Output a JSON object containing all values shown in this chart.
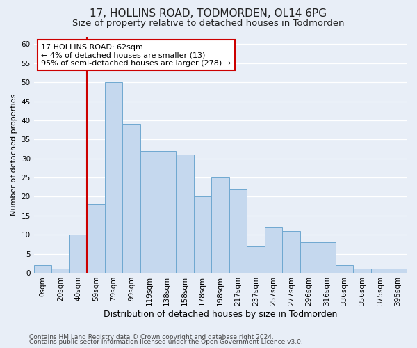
{
  "title1": "17, HOLLINS ROAD, TODMORDEN, OL14 6PG",
  "title2": "Size of property relative to detached houses in Todmorden",
  "xlabel": "Distribution of detached houses by size in Todmorden",
  "ylabel": "Number of detached properties",
  "categories": [
    "0sqm",
    "20sqm",
    "40sqm",
    "59sqm",
    "79sqm",
    "99sqm",
    "119sqm",
    "138sqm",
    "158sqm",
    "178sqm",
    "198sqm",
    "217sqm",
    "237sqm",
    "257sqm",
    "277sqm",
    "296sqm",
    "316sqm",
    "336sqm",
    "356sqm",
    "375sqm",
    "395sqm"
  ],
  "values": [
    2,
    1,
    10,
    18,
    50,
    39,
    32,
    32,
    31,
    20,
    25,
    22,
    7,
    12,
    11,
    8,
    8,
    2,
    1,
    1,
    1
  ],
  "bar_color": "#C5D8EE",
  "bar_edge_color": "#6FA8D0",
  "vline_color": "#CC0000",
  "annotation_box_text": "17 HOLLINS ROAD: 62sqm\n← 4% of detached houses are smaller (13)\n95% of semi-detached houses are larger (278) →",
  "annotation_box_color": "#CC0000",
  "annotation_box_fill": "#FFFFFF",
  "ylim": [
    0,
    62
  ],
  "yticks": [
    0,
    5,
    10,
    15,
    20,
    25,
    30,
    35,
    40,
    45,
    50,
    55,
    60
  ],
  "footer1": "Contains HM Land Registry data © Crown copyright and database right 2024.",
  "footer2": "Contains public sector information licensed under the Open Government Licence v3.0.",
  "title1_fontsize": 11,
  "title2_fontsize": 9.5,
  "xlabel_fontsize": 9,
  "ylabel_fontsize": 8,
  "tick_fontsize": 7.5,
  "annotation_fontsize": 8,
  "footer_fontsize": 6.5,
  "background_color": "#E8EEF7",
  "grid_color": "#FFFFFF",
  "vline_bar_index": 3
}
